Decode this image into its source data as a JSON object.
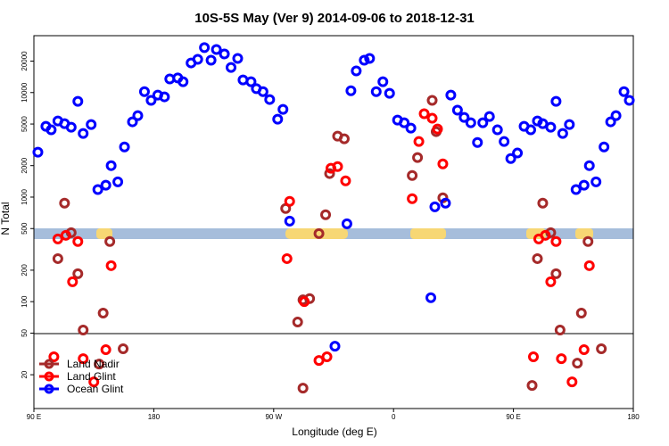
{
  "chart_data": {
    "type": "scatter",
    "title": "10S-5S May (Ver 9)   2014-09-06 to 2018-12-31",
    "x_label": "Longitude (deg E)",
    "y_label": "N Total",
    "xlim": [
      90,
      540
    ],
    "xticks": [
      {
        "value": 90,
        "label": "90 E"
      },
      {
        "value": 180,
        "label": "180"
      },
      {
        "value": 270,
        "label": "90 W"
      },
      {
        "value": 360,
        "label": "0"
      },
      {
        "value": 450,
        "label": "90 E"
      },
      {
        "value": 540,
        "label": "180"
      }
    ],
    "ylim": [
      9.5,
      35000
    ],
    "yticks": [
      20,
      50,
      100,
      200,
      500,
      1000,
      2000,
      5000,
      10000,
      20000
    ],
    "log_y": true,
    "legend": "lower left",
    "series": [
      {
        "name": "Land Nadir",
        "color": "#a52a2a",
        "x": [
          113,
          108,
          118,
          123,
          127,
          142,
          147,
          157,
          139,
          288,
          292,
          297,
          304,
          309,
          279,
          312,
          318,
          323,
          374,
          378,
          389,
          392,
          397,
          292,
          464,
          468,
          472,
          478,
          482,
          485,
          501,
          506,
          516,
          498
        ],
        "values": [
          875,
          258,
          457,
          185,
          53.5,
          77.8,
          376,
          35.4,
          25.3,
          63.8,
          104,
          107,
          448,
          678,
          778,
          1680,
          3830,
          3610,
          1610,
          2390,
          8420,
          4230,
          984,
          14.9,
          15.8,
          258,
          875,
          457,
          185,
          53.5,
          77.8,
          376,
          35.4,
          25.8
        ]
      },
      {
        "name": "Land Glint",
        "color": "#ff0000",
        "x": [
          108,
          114,
          123,
          119,
          148,
          280,
          282,
          293,
          304,
          310,
          313,
          318,
          324,
          374,
          379,
          383,
          389,
          393,
          397,
          469,
          474,
          482,
          478,
          507,
          465,
          486,
          494,
          503,
          105,
          127,
          135,
          144
        ],
        "values": [
          398,
          431,
          376,
          155,
          221,
          258,
          910,
          100,
          27.4,
          29.7,
          1890,
          1960,
          1430,
          966,
          3400,
          6270,
          5680,
          4480,
          2080,
          398,
          431,
          376,
          155,
          221,
          29.7,
          28.5,
          17.1,
          34.7,
          29.7,
          28.5,
          17.1,
          34.7
        ]
      },
      {
        "name": "Ocean Glint",
        "color": "#0000ff",
        "x": [
          93,
          99,
          103,
          108,
          113,
          118,
          123,
          127,
          133,
          138,
          144,
          148,
          153,
          158,
          164,
          168,
          173,
          178,
          183,
          188,
          192,
          198,
          202,
          208,
          213,
          218,
          223,
          227,
          233,
          238,
          243,
          247,
          253,
          257,
          262,
          267,
          273,
          277,
          282,
          325,
          328,
          332,
          338,
          342,
          347,
          352,
          357,
          363,
          368,
          373,
          388,
          391,
          399,
          403,
          408,
          413,
          418,
          423,
          427,
          432,
          438,
          443,
          448,
          453,
          458,
          463,
          468,
          472,
          478,
          482,
          487,
          492,
          497,
          503,
          507,
          512,
          518,
          523,
          527,
          533,
          537,
          316
        ],
        "values": [
          2690,
          4750,
          4400,
          5350,
          5040,
          4660,
          8240,
          4060,
          4940,
          1180,
          1300,
          2000,
          1400,
          3020,
          5250,
          6020,
          10200,
          8420,
          9460,
          9100,
          13500,
          13800,
          12700,
          19200,
          20800,
          26900,
          20400,
          25800,
          23400,
          17400,
          21200,
          13200,
          12700,
          10900,
          10200,
          8580,
          5560,
          6900,
          590,
          556,
          10400,
          16100,
          20400,
          21200,
          10200,
          12700,
          9840,
          5460,
          5140,
          4570,
          109,
          808,
          875,
          9460,
          6780,
          5790,
          5140,
          3330,
          5140,
          5900,
          4400,
          3400,
          2340,
          2640,
          4750,
          4400,
          5350,
          5040,
          4660,
          8240,
          4060,
          4940,
          1180,
          1300,
          2000,
          1400,
          3020,
          5250,
          6020,
          10200,
          8420,
          37.5
        ]
      }
    ]
  }
}
